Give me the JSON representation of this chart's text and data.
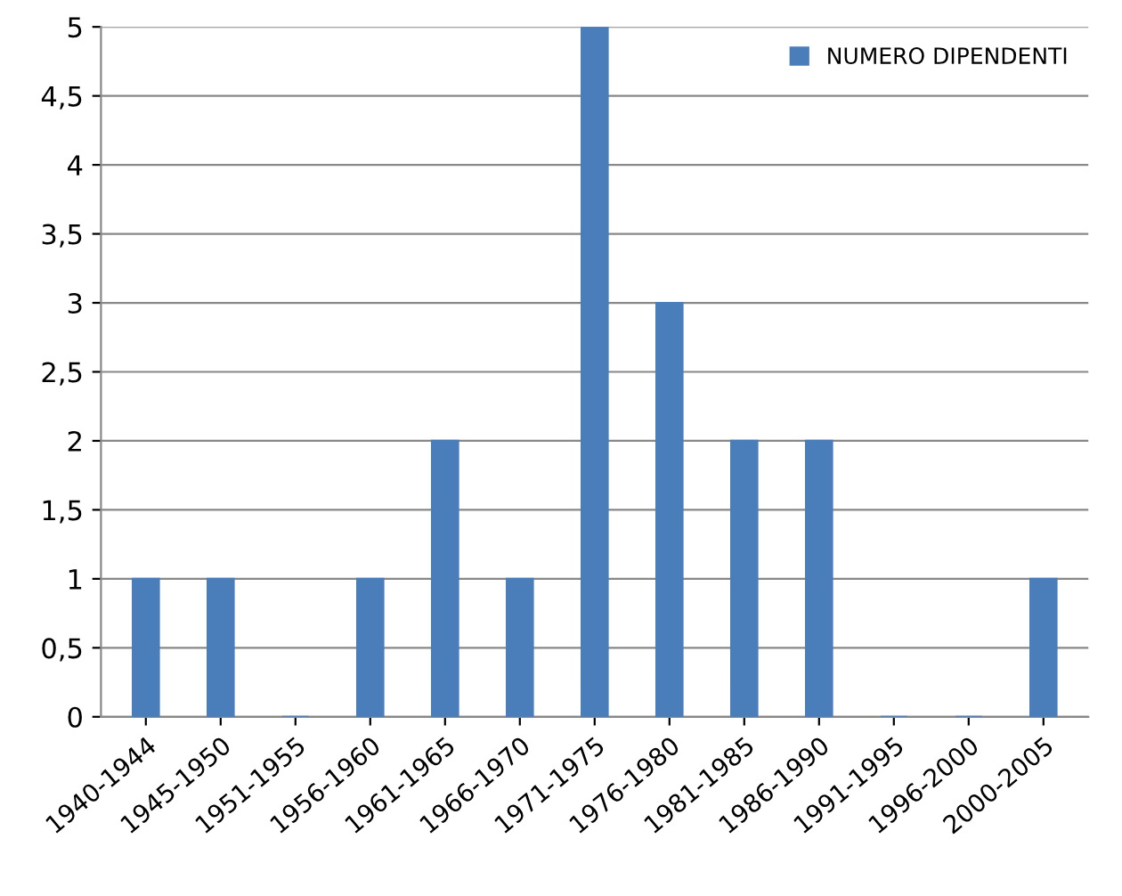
{
  "chart_data": {
    "type": "bar",
    "categories": [
      "1940-1944",
      "1945-1950",
      "1951-1955",
      "1956-1960",
      "1961-1965",
      "1966-1970",
      "1971-1975",
      "1976-1980",
      "1981-1985",
      "1986-1990",
      "1991-1995",
      "1996-2000",
      "2000-2005"
    ],
    "series": [
      {
        "name": "NUMERO DIPENDENTI",
        "color": "#4a7ebb",
        "values": [
          1,
          1,
          0,
          1,
          2,
          1,
          5,
          3,
          2,
          2,
          0,
          0,
          1
        ]
      }
    ],
    "ylim": [
      0,
      5
    ],
    "yticks": [
      0,
      {
        "value": 0.5,
        "label": "0,5"
      },
      1,
      {
        "value": 1.5,
        "label": "1,5"
      },
      2,
      {
        "value": 2.5,
        "label": "2,5"
      },
      3,
      {
        "value": 3.5,
        "label": "3,5"
      },
      4,
      {
        "value": 4.5,
        "label": "4,5"
      },
      5
    ],
    "grid": "y",
    "legend": "top right"
  }
}
